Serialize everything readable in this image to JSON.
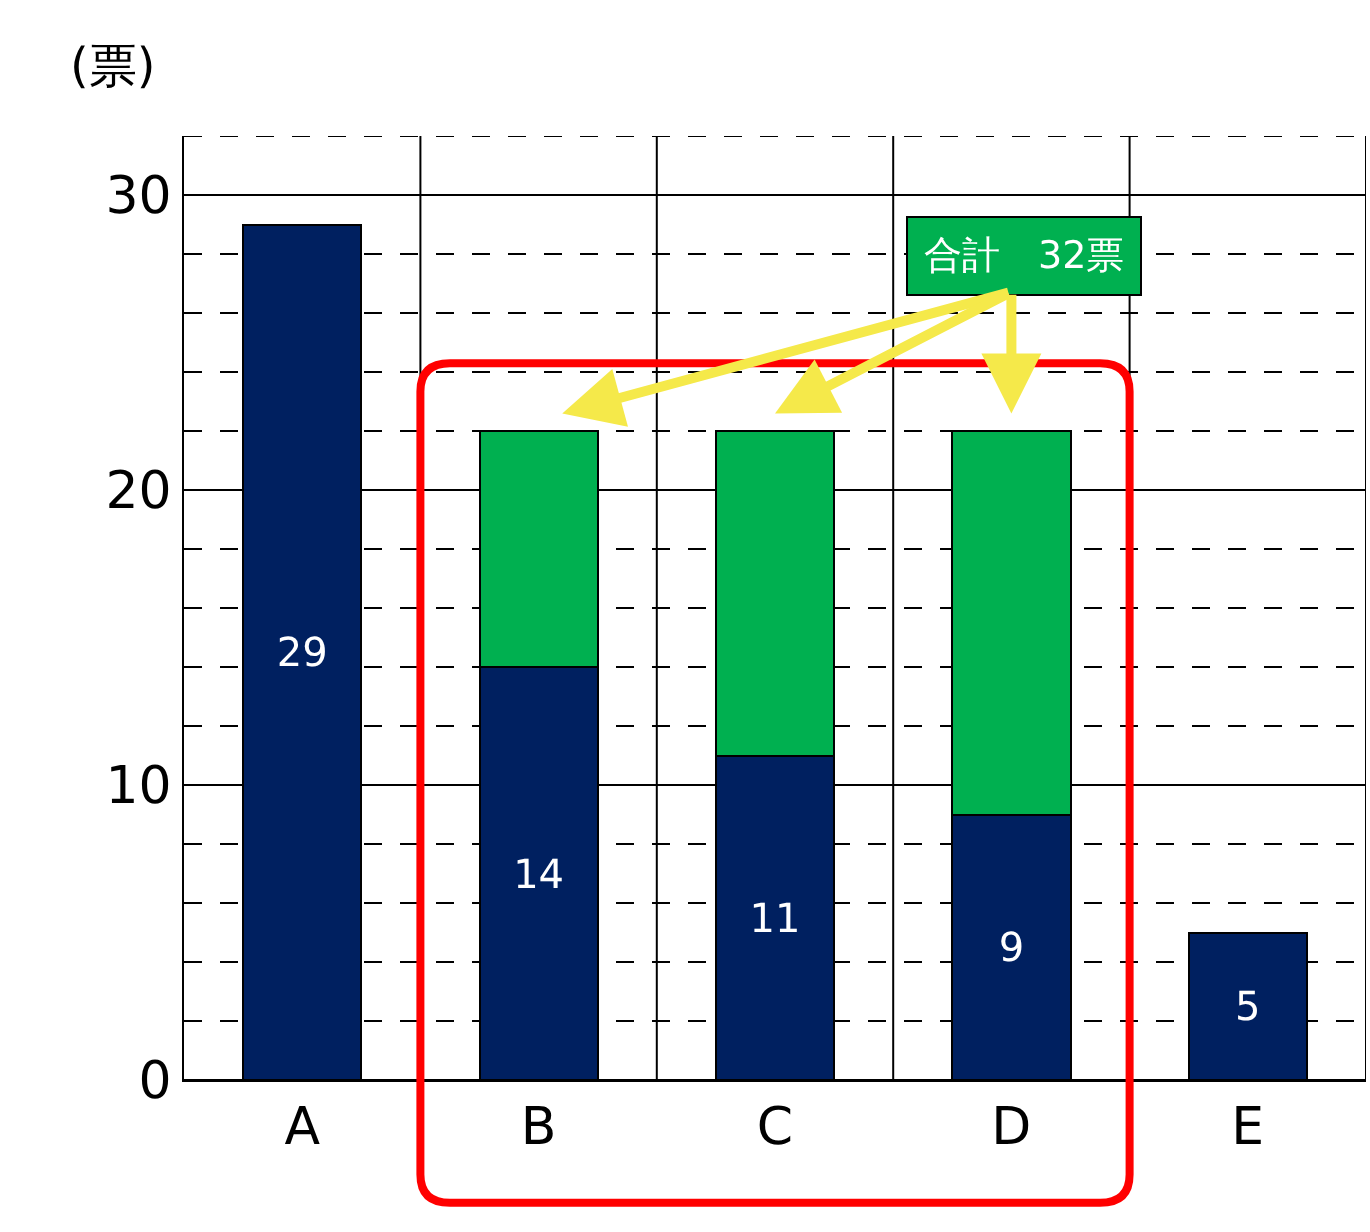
{
  "chart_data": {
    "type": "bar",
    "stacked": true,
    "ylabel": "(票)",
    "categories": [
      "A",
      "B",
      "C",
      "D",
      "E"
    ],
    "series": [
      {
        "color": "#002060",
        "values": [
          29,
          14,
          11,
          9,
          5
        ],
        "value_labels": [
          "29",
          "14",
          "11",
          "9",
          "5"
        ]
      },
      {
        "color": "#00b050",
        "values": [
          null,
          8,
          11,
          13,
          null
        ]
      }
    ],
    "ylim": [
      0,
      32
    ],
    "yticks": [
      0,
      {
        "value": 2,
        "label": null
      },
      {
        "value": 4,
        "label": null
      },
      {
        "value": 6,
        "label": null
      },
      {
        "value": 8,
        "label": null
      },
      10,
      {
        "value": 12,
        "label": null
      },
      {
        "value": 14,
        "label": null
      },
      {
        "value": 16,
        "label": null
      },
      {
        "value": 18,
        "label": null
      },
      20,
      {
        "value": 22,
        "label": null
      },
      {
        "value": 24,
        "label": null
      },
      {
        "value": 26,
        "label": null
      },
      {
        "value": 28,
        "label": null
      },
      30,
      {
        "value": 32,
        "label": null
      }
    ],
    "grid": true,
    "annotations": [
      "合計　32票"
    ]
  }
}
